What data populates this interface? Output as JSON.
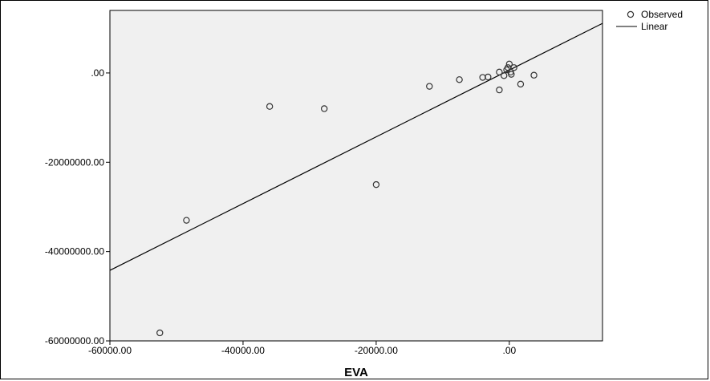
{
  "chart_data": {
    "type": "scatter",
    "title": "",
    "xlabel": "EVA",
    "ylabel": "",
    "xlim": [
      -60000,
      14000
    ],
    "ylim": [
      -60000000,
      14000000
    ],
    "x_ticks": [
      {
        "value": -60000,
        "label": "-60000.00"
      },
      {
        "value": -40000,
        "label": "-40000.00"
      },
      {
        "value": -20000,
        "label": "-20000.00"
      },
      {
        "value": 0,
        "label": ".00"
      }
    ],
    "y_ticks": [
      {
        "value": 0,
        "label": ".00"
      },
      {
        "value": -20000000,
        "label": "-20000000.00"
      },
      {
        "value": -40000000,
        "label": "-40000000.00"
      },
      {
        "value": -60000000,
        "label": "-60000000.00"
      }
    ],
    "grid": false,
    "legend": {
      "position": "top-right",
      "entries": [
        {
          "label": "Observed",
          "marker": "circle"
        },
        {
          "label": "Linear",
          "marker": "line"
        }
      ]
    },
    "series": [
      {
        "name": "Observed",
        "type": "scatter",
        "points": [
          {
            "x": -52500,
            "y": -58200000
          },
          {
            "x": -48500,
            "y": -33000000
          },
          {
            "x": -36000,
            "y": -7500000
          },
          {
            "x": -27800,
            "y": -8000000
          },
          {
            "x": -20000,
            "y": -25000000
          },
          {
            "x": -12000,
            "y": -3000000
          },
          {
            "x": -7500,
            "y": -1500000
          },
          {
            "x": -4000,
            "y": -1000000
          },
          {
            "x": -3200,
            "y": -900000
          },
          {
            "x": -1500,
            "y": -3800000
          },
          {
            "x": -1500,
            "y": 200000
          },
          {
            "x": -800,
            "y": -600000
          },
          {
            "x": -400,
            "y": 700000
          },
          {
            "x": -200,
            "y": 1200000
          },
          {
            "x": 0,
            "y": 2000000
          },
          {
            "x": 200,
            "y": 200000
          },
          {
            "x": 300,
            "y": -300000
          },
          {
            "x": 700,
            "y": 1200000
          },
          {
            "x": 1700,
            "y": -2500000
          },
          {
            "x": 3700,
            "y": -500000
          }
        ]
      },
      {
        "name": "Linear",
        "type": "line",
        "points": [
          {
            "x": -60000,
            "y": -44200000
          },
          {
            "x": 14000,
            "y": 11100000
          }
        ]
      }
    ],
    "colors": {
      "background": "#f0f0f0",
      "marker_edge": "#333333",
      "line": "#000000"
    }
  }
}
